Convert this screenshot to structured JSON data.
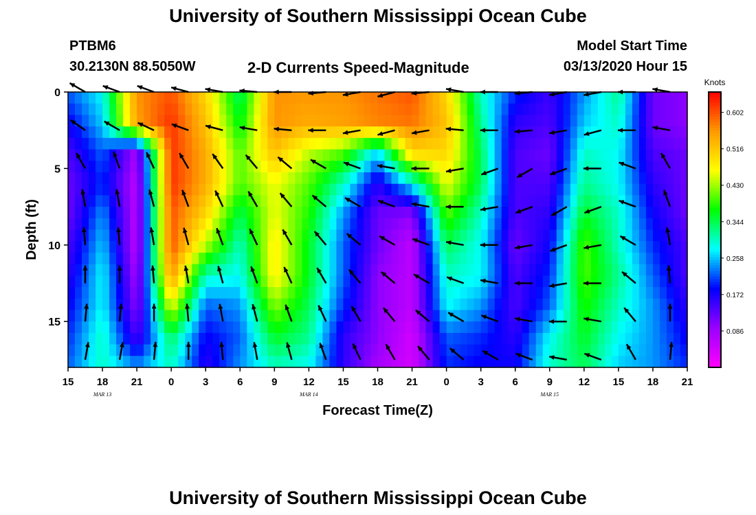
{
  "page": {
    "title_top": "University of Southern Mississippi Ocean Cube",
    "title_bottom": "University of Southern Mississippi Ocean Cube",
    "station": "PTBM6",
    "location": "30.2130N 88.5050W",
    "plot_title": "2-D Currents Speed-Magnitude",
    "model_start_label": "Model Start Time",
    "model_start_value": "03/13/2020 Hour 15"
  },
  "colors": {
    "palette": [
      "#ff00ff",
      "#9900ff",
      "#0000ff",
      "#00ffff",
      "#00ff00",
      "#ffff00",
      "#ff9900",
      "#ff0000"
    ],
    "arrow": "#000000"
  },
  "chart_data": {
    "type": "heatmap",
    "title": "2-D Currents Speed-Magnitude",
    "xlabel": "Forecast Time(Z)",
    "ylabel": "Depth (ft)",
    "x_unit": "hours since 03/13/2020 15Z",
    "x_range": [
      0,
      54
    ],
    "x_ticks": [
      0,
      3,
      6,
      9,
      12,
      15,
      18,
      21,
      24,
      27,
      30,
      33,
      36,
      39,
      42,
      45,
      48,
      51,
      54
    ],
    "x_tick_labels": [
      "15",
      "18",
      "21",
      "0",
      "3",
      "6",
      "9",
      "12",
      "15",
      "18",
      "21",
      "0",
      "3",
      "6",
      "9",
      "12",
      "15",
      "18",
      "21"
    ],
    "date_labels": [
      {
        "label": "MAR 13",
        "x": 3
      },
      {
        "label": "MAR 14",
        "x": 21
      },
      {
        "label": "MAR 15",
        "x": 42
      }
    ],
    "y_range": [
      0,
      18
    ],
    "y_ticks": [
      0,
      5,
      10,
      15
    ],
    "y_inverted": true,
    "colorbar": {
      "label": "Knots",
      "min": 0.0,
      "max": 0.65,
      "ticks": [
        0.602,
        0.516,
        0.43,
        0.344,
        0.258,
        0.172,
        0.086
      ]
    },
    "depths": [
      0,
      2,
      4,
      6,
      8,
      10,
      12,
      14,
      16,
      18
    ],
    "times": [
      0,
      3,
      6,
      9,
      12,
      15,
      18,
      21,
      24,
      27,
      30,
      33,
      36,
      39,
      42,
      45,
      48,
      51,
      54
    ],
    "speed": [
      [
        0.22,
        0.28,
        0.56,
        0.6,
        0.5,
        0.33,
        0.56,
        0.56,
        0.56,
        0.58,
        0.6,
        0.5,
        0.3,
        0.2,
        0.15,
        0.24,
        0.32,
        0.12,
        0.1
      ],
      [
        0.18,
        0.26,
        0.55,
        0.62,
        0.52,
        0.36,
        0.56,
        0.54,
        0.55,
        0.57,
        0.58,
        0.52,
        0.32,
        0.16,
        0.14,
        0.26,
        0.3,
        0.12,
        0.1
      ],
      [
        0.14,
        0.22,
        0.08,
        0.62,
        0.54,
        0.4,
        0.52,
        0.44,
        0.4,
        0.26,
        0.5,
        0.5,
        0.34,
        0.14,
        0.12,
        0.3,
        0.28,
        0.14,
        0.12
      ],
      [
        0.12,
        0.2,
        0.06,
        0.62,
        0.54,
        0.4,
        0.46,
        0.4,
        0.3,
        0.16,
        0.28,
        0.46,
        0.34,
        0.14,
        0.14,
        0.32,
        0.28,
        0.16,
        0.12
      ],
      [
        0.12,
        0.24,
        0.06,
        0.6,
        0.5,
        0.34,
        0.46,
        0.38,
        0.24,
        0.12,
        0.1,
        0.4,
        0.3,
        0.14,
        0.16,
        0.36,
        0.3,
        0.18,
        0.12
      ],
      [
        0.14,
        0.26,
        0.06,
        0.6,
        0.44,
        0.3,
        0.48,
        0.36,
        0.22,
        0.12,
        0.06,
        0.34,
        0.28,
        0.12,
        0.18,
        0.4,
        0.3,
        0.2,
        0.14
      ],
      [
        0.16,
        0.28,
        0.08,
        0.56,
        0.3,
        0.28,
        0.48,
        0.36,
        0.22,
        0.1,
        0.06,
        0.3,
        0.28,
        0.14,
        0.2,
        0.4,
        0.32,
        0.22,
        0.14
      ],
      [
        0.18,
        0.28,
        0.1,
        0.46,
        0.22,
        0.24,
        0.42,
        0.34,
        0.2,
        0.1,
        0.06,
        0.28,
        0.24,
        0.14,
        0.22,
        0.38,
        0.3,
        0.24,
        0.16
      ],
      [
        0.2,
        0.3,
        0.14,
        0.34,
        0.18,
        0.22,
        0.36,
        0.32,
        0.16,
        0.1,
        0.04,
        0.22,
        0.2,
        0.16,
        0.28,
        0.36,
        0.28,
        0.24,
        0.18
      ],
      [
        0.22,
        0.3,
        0.24,
        0.3,
        0.16,
        0.24,
        0.3,
        0.28,
        0.16,
        0.08,
        0.04,
        0.2,
        0.18,
        0.18,
        0.3,
        0.34,
        0.26,
        0.24,
        0.2
      ]
    ],
    "arrow_depths": [
      0,
      2.5,
      5,
      7.5,
      10,
      12.5,
      15,
      17.5
    ],
    "arrow_times": [
      1.5,
      4.5,
      7.5,
      10.5,
      13.5,
      16.5,
      19.5,
      22.5,
      25.5,
      28.5,
      31.5,
      34.5,
      37.5,
      40.5,
      43.5,
      46.5,
      49.5,
      52.5
    ],
    "arrow_direction_deg": [
      [
        150,
        160,
        160,
        165,
        170,
        175,
        180,
        185,
        190,
        195,
        185,
        170,
        180,
        185,
        190,
        190,
        180,
        170
      ],
      [
        145,
        150,
        155,
        160,
        165,
        170,
        175,
        180,
        190,
        195,
        190,
        175,
        180,
        185,
        190,
        195,
        180,
        170
      ],
      [
        120,
        110,
        115,
        120,
        125,
        130,
        140,
        150,
        160,
        170,
        180,
        190,
        200,
        210,
        200,
        180,
        160,
        120
      ],
      [
        100,
        100,
        105,
        110,
        115,
        120,
        130,
        140,
        150,
        160,
        170,
        180,
        190,
        200,
        210,
        200,
        160,
        110
      ],
      [
        95,
        95,
        100,
        105,
        110,
        115,
        120,
        130,
        140,
        150,
        160,
        170,
        180,
        190,
        200,
        190,
        150,
        100
      ],
      [
        90,
        90,
        95,
        100,
        105,
        110,
        115,
        120,
        130,
        140,
        150,
        160,
        170,
        180,
        190,
        180,
        140,
        95
      ],
      [
        85,
        85,
        90,
        95,
        100,
        105,
        110,
        115,
        120,
        130,
        140,
        150,
        160,
        170,
        180,
        170,
        130,
        90
      ],
      [
        80,
        80,
        85,
        90,
        95,
        100,
        105,
        110,
        115,
        120,
        130,
        140,
        150,
        160,
        170,
        160,
        120,
        85
      ]
    ]
  }
}
